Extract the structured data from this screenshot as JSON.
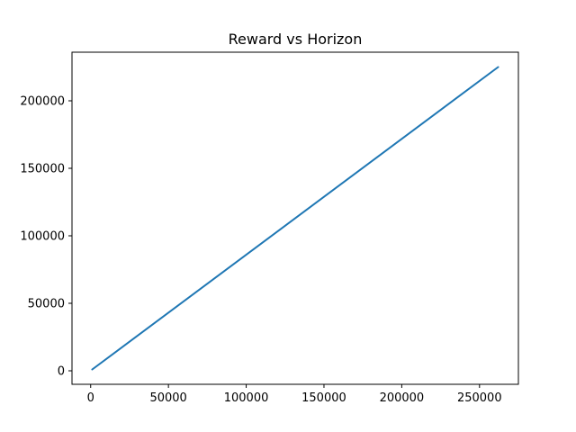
{
  "chart_data": {
    "type": "line",
    "title": "Reward vs Horizon",
    "xlabel": "",
    "ylabel": "",
    "xlim": [
      -12000,
      275000
    ],
    "ylim": [
      -10000,
      236000
    ],
    "x_ticks": [
      0,
      50000,
      100000,
      150000,
      200000,
      250000
    ],
    "x_tick_labels": [
      "0",
      "50000",
      "100000",
      "150000",
      "200000",
      "250000"
    ],
    "y_ticks": [
      0,
      50000,
      100000,
      150000,
      200000
    ],
    "y_tick_labels": [
      "0",
      "50000",
      "100000",
      "150000",
      "200000"
    ],
    "grid": false,
    "legend": "none",
    "series": [
      {
        "color": "#1f77b4",
        "points": [
          [
            1000,
            1000
          ],
          [
            262000,
            225000
          ]
        ]
      }
    ]
  }
}
